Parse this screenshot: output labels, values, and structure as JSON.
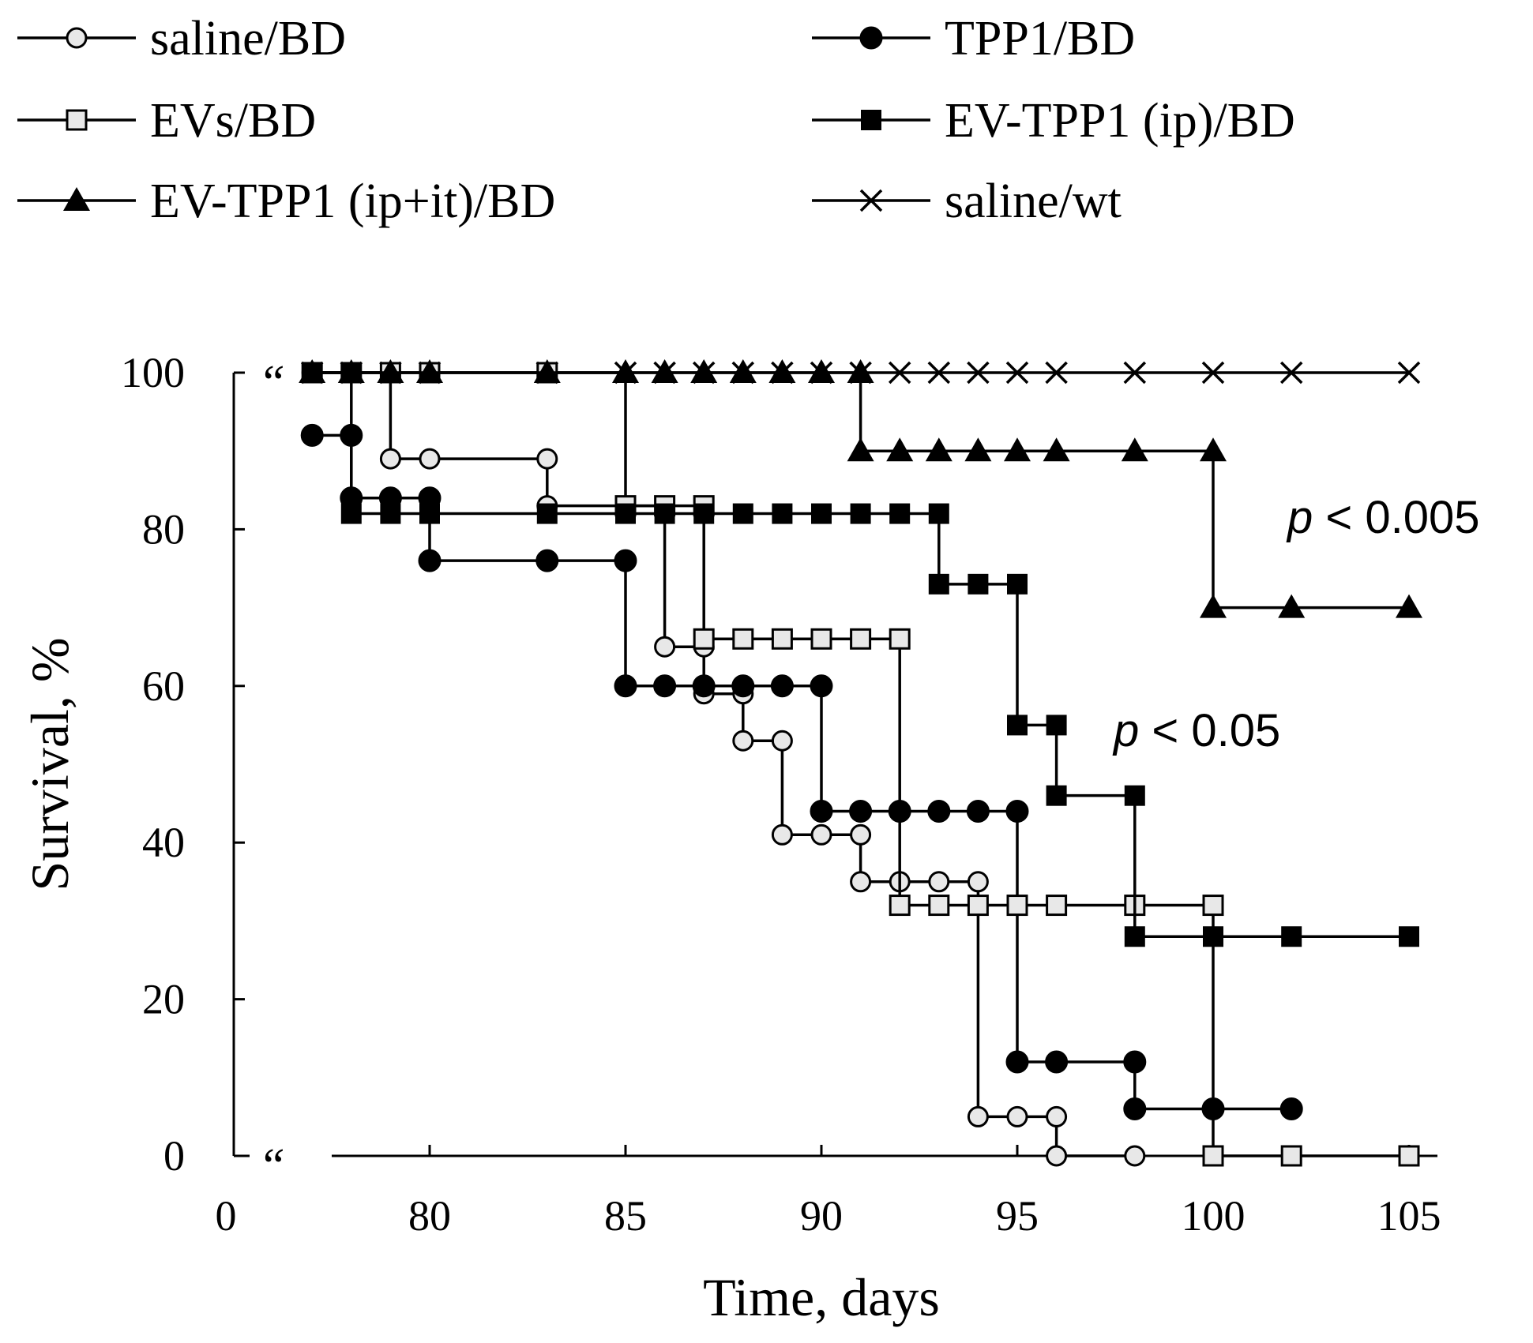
{
  "chart_data": {
    "type": "line",
    "subtype": "kaplan-meier-step",
    "xlabel": "Time, days",
    "ylabel": "Survival, %",
    "ylim": [
      0,
      100
    ],
    "yticks": [
      0,
      20,
      40,
      60,
      80,
      100
    ],
    "xticks": [
      0,
      80,
      85,
      90,
      95,
      100,
      105
    ],
    "xlim_broken": [
      75,
      105
    ],
    "axis_break_mark": "“",
    "series": [
      {
        "name": "saline/BD",
        "marker": "circle-open",
        "x": [
          77,
          78,
          79,
          80,
          83,
          83,
          86,
          87,
          87,
          88,
          88,
          89,
          89,
          90,
          91,
          91,
          92,
          93,
          94,
          94,
          95,
          96,
          96,
          98
        ],
        "y": [
          100,
          100,
          89,
          89,
          89,
          83,
          65,
          65,
          59,
          59,
          53,
          53,
          41,
          41,
          41,
          35,
          35,
          35,
          35,
          5,
          5,
          5,
          0,
          0
        ]
      },
      {
        "name": "TPP1/BD",
        "marker": "circle-filled",
        "x": [
          77,
          78,
          78,
          79,
          80,
          80,
          83,
          85,
          85,
          86,
          87,
          88,
          89,
          90,
          90,
          91,
          92,
          93,
          94,
          95,
          95,
          96,
          98,
          98,
          100,
          102
        ],
        "y": [
          92,
          92,
          84,
          84,
          84,
          76,
          76,
          76,
          60,
          60,
          60,
          60,
          60,
          60,
          44,
          44,
          44,
          44,
          44,
          44,
          12,
          12,
          12,
          6,
          6,
          6
        ]
      },
      {
        "name": "EVs/BD",
        "marker": "square-open",
        "x": [
          77,
          78,
          79,
          80,
          83,
          85,
          86,
          87,
          87,
          88,
          89,
          90,
          91,
          92,
          92,
          93,
          94,
          95,
          96,
          98,
          100,
          100,
          102,
          105
        ],
        "y": [
          100,
          100,
          100,
          100,
          100,
          83,
          83,
          83,
          66,
          66,
          66,
          66,
          66,
          66,
          32,
          32,
          32,
          32,
          32,
          32,
          32,
          0,
          0,
          0
        ]
      },
      {
        "name": "EV-TPP1 (ip)/BD",
        "marker": "square-filled",
        "x": [
          77,
          78,
          78,
          79,
          80,
          83,
          85,
          86,
          87,
          88,
          89,
          90,
          91,
          92,
          93,
          93,
          94,
          95,
          95,
          96,
          96,
          98,
          98,
          100,
          102,
          105
        ],
        "y": [
          100,
          100,
          82,
          82,
          82,
          82,
          82,
          82,
          82,
          82,
          82,
          82,
          82,
          82,
          82,
          73,
          73,
          73,
          55,
          55,
          46,
          46,
          28,
          28,
          28,
          28
        ]
      },
      {
        "name": "EV-TPP1 (ip+it)/BD",
        "marker": "triangle-filled",
        "x": [
          77,
          78,
          79,
          80,
          83,
          85,
          86,
          87,
          88,
          89,
          90,
          91,
          91,
          92,
          93,
          94,
          95,
          96,
          98,
          100,
          100,
          102,
          105
        ],
        "y": [
          100,
          100,
          100,
          100,
          100,
          100,
          100,
          100,
          100,
          100,
          100,
          100,
          90,
          90,
          90,
          90,
          90,
          90,
          90,
          90,
          70,
          70,
          70
        ]
      },
      {
        "name": "saline/wt",
        "marker": "x",
        "x": [
          77,
          78,
          79,
          80,
          83,
          85,
          86,
          87,
          88,
          89,
          90,
          91,
          92,
          93,
          94,
          95,
          96,
          98,
          100,
          102,
          105
        ],
        "y": [
          100,
          100,
          100,
          100,
          100,
          100,
          100,
          100,
          100,
          100,
          100,
          100,
          100,
          100,
          100,
          100,
          100,
          100,
          100,
          100,
          100
        ]
      }
    ],
    "annotations": [
      {
        "text_p": "p",
        "text_rest": " < 0.005",
        "near_series": "EV-TPP1 (ip+it)/BD"
      },
      {
        "text_p": "p",
        "text_rest": " < 0.05",
        "near_series": "EV-TPP1 (ip)/BD"
      }
    ],
    "legend": {
      "placement": "top",
      "columns": 2
    }
  }
}
